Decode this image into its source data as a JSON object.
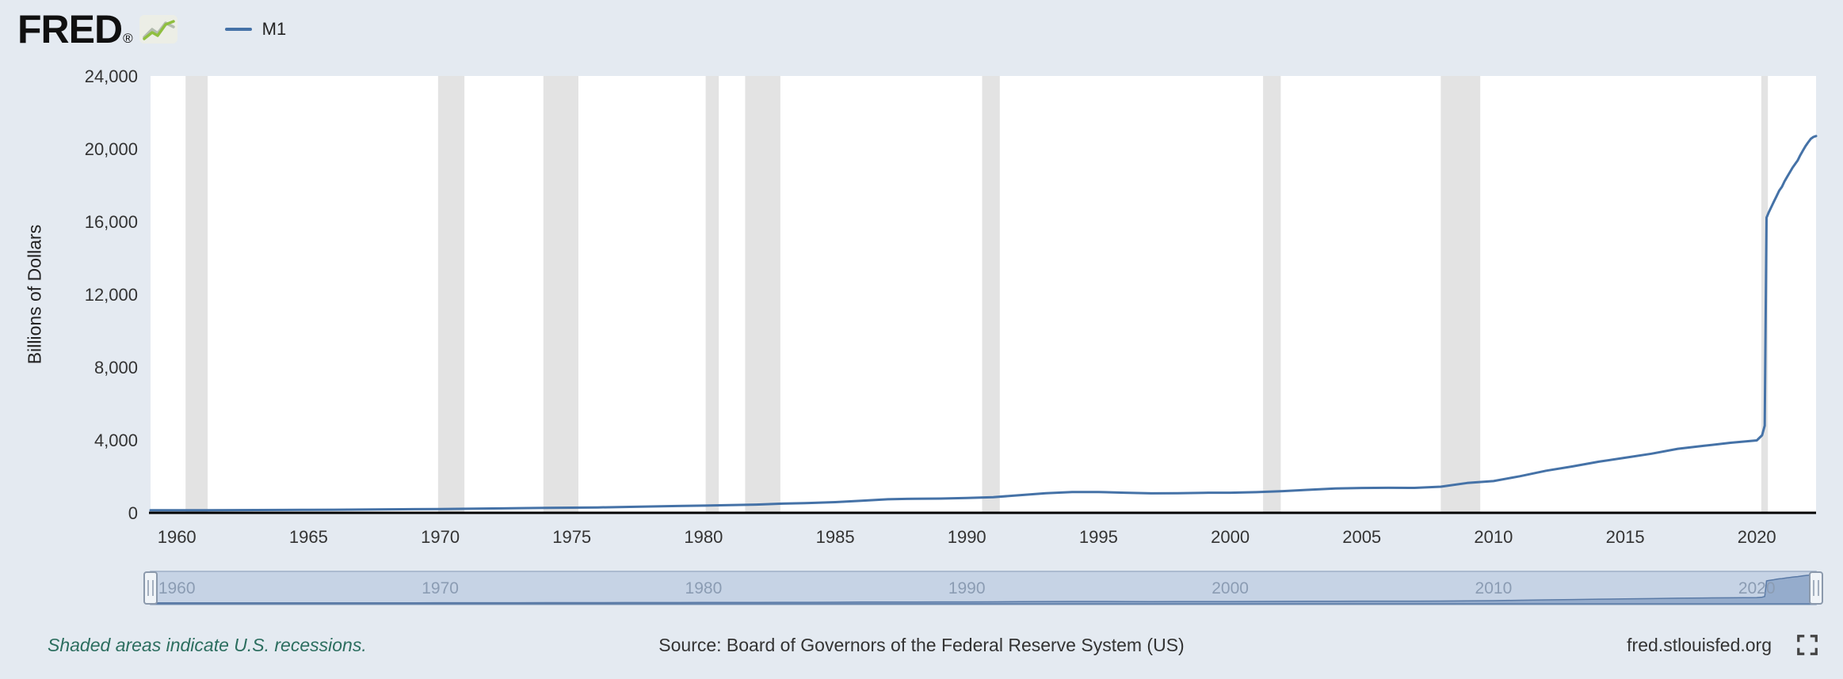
{
  "header": {
    "logo_text": "FRED",
    "logo_registered": "®",
    "legend": {
      "series_label": "M1"
    }
  },
  "chart": {
    "y_axis_label": "Billions of Dollars",
    "y_ticks": [
      {
        "value": 0,
        "label": "0"
      },
      {
        "value": 4000,
        "label": "4,000"
      },
      {
        "value": 8000,
        "label": "8,000"
      },
      {
        "value": 12000,
        "label": "12,000"
      },
      {
        "value": 16000,
        "label": "16,000"
      },
      {
        "value": 20000,
        "label": "20,000"
      },
      {
        "value": 24000,
        "label": "24,000"
      }
    ],
    "x_ticks": [
      {
        "value": 1960,
        "label": "1960"
      },
      {
        "value": 1965,
        "label": "1965"
      },
      {
        "value": 1970,
        "label": "1970"
      },
      {
        "value": 1975,
        "label": "1975"
      },
      {
        "value": 1980,
        "label": "1980"
      },
      {
        "value": 1985,
        "label": "1985"
      },
      {
        "value": 1990,
        "label": "1990"
      },
      {
        "value": 1995,
        "label": "1995"
      },
      {
        "value": 2000,
        "label": "2000"
      },
      {
        "value": 2005,
        "label": "2005"
      },
      {
        "value": 2010,
        "label": "2010"
      },
      {
        "value": 2015,
        "label": "2015"
      },
      {
        "value": 2020,
        "label": "2020"
      }
    ],
    "colors": {
      "line": "#4572a7",
      "recession": "#e3e3e3",
      "plot_background": "#ffffff",
      "page_background": "#e4eaf1",
      "navigator_track": "#c6d3e5",
      "navigator_series": "#8ca5c8"
    }
  },
  "navigator": {
    "labels": [
      {
        "value": 1960,
        "label": "1960"
      },
      {
        "value": 1970,
        "label": "1970"
      },
      {
        "value": 1980,
        "label": "1980"
      },
      {
        "value": 1990,
        "label": "1990"
      },
      {
        "value": 2000,
        "label": "2000"
      },
      {
        "value": 2010,
        "label": "2010"
      },
      {
        "value": 2020,
        "label": "2020"
      }
    ]
  },
  "footer": {
    "recession_note": "Shaded areas indicate U.S. recessions.",
    "source": "Source: Board of Governors of the Federal Reserve System (US)",
    "site": "fred.stlouisfed.org"
  },
  "chart_data": {
    "type": "line",
    "title": "M1",
    "xlabel": "",
    "ylabel": "Billions of Dollars",
    "xlim": [
      1959,
      2022.25
    ],
    "ylim": [
      0,
      24000
    ],
    "grid": false,
    "legend_position": "top-left",
    "series": [
      {
        "name": "M1",
        "points": [
          [
            1959,
            139
          ],
          [
            1960,
            140
          ],
          [
            1961,
            143
          ],
          [
            1962,
            146
          ],
          [
            1963,
            151
          ],
          [
            1964,
            157
          ],
          [
            1965,
            164
          ],
          [
            1966,
            171
          ],
          [
            1967,
            178
          ],
          [
            1968,
            190
          ],
          [
            1969,
            201
          ],
          [
            1970,
            209
          ],
          [
            1971,
            223
          ],
          [
            1972,
            239
          ],
          [
            1973,
            256
          ],
          [
            1974,
            269
          ],
          [
            1975,
            281
          ],
          [
            1976,
            297
          ],
          [
            1977,
            320
          ],
          [
            1978,
            346
          ],
          [
            1979,
            372
          ],
          [
            1980,
            396
          ],
          [
            1981,
            425
          ],
          [
            1982,
            453
          ],
          [
            1983,
            503
          ],
          [
            1984,
            538
          ],
          [
            1985,
            587
          ],
          [
            1986,
            666
          ],
          [
            1987,
            744
          ],
          [
            1988,
            775
          ],
          [
            1989,
            782
          ],
          [
            1990,
            811
          ],
          [
            1991,
            859
          ],
          [
            1992,
            965
          ],
          [
            1993,
            1078
          ],
          [
            1994,
            1145
          ],
          [
            1995,
            1143
          ],
          [
            1996,
            1106
          ],
          [
            1997,
            1070
          ],
          [
            1998,
            1080
          ],
          [
            1999,
            1102
          ],
          [
            2000,
            1104
          ],
          [
            2001,
            1136
          ],
          [
            2002,
            1192
          ],
          [
            2003,
            1267
          ],
          [
            2004,
            1335
          ],
          [
            2005,
            1366
          ],
          [
            2006,
            1374
          ],
          [
            2007,
            1369
          ],
          [
            2008,
            1435
          ],
          [
            2009,
            1638
          ],
          [
            2010,
            1742
          ],
          [
            2011,
            2009
          ],
          [
            2012,
            2311
          ],
          [
            2013,
            2546
          ],
          [
            2014,
            2810
          ],
          [
            2015,
            3027
          ],
          [
            2016,
            3250
          ],
          [
            2017,
            3519
          ],
          [
            2018,
            3682
          ],
          [
            2019,
            3846
          ],
          [
            2020,
            3978
          ],
          [
            2020.2,
            4261
          ],
          [
            2020.3,
            4790
          ],
          [
            2020.37,
            16219
          ],
          [
            2020.45,
            16500
          ],
          [
            2020.55,
            16800
          ],
          [
            2020.65,
            17100
          ],
          [
            2020.75,
            17400
          ],
          [
            2020.85,
            17700
          ],
          [
            2020.95,
            17900
          ],
          [
            2021.05,
            18200
          ],
          [
            2021.15,
            18450
          ],
          [
            2021.25,
            18700
          ],
          [
            2021.35,
            18950
          ],
          [
            2021.45,
            19150
          ],
          [
            2021.55,
            19350
          ],
          [
            2021.65,
            19650
          ],
          [
            2021.75,
            19900
          ],
          [
            2021.85,
            20150
          ],
          [
            2021.95,
            20350
          ],
          [
            2022.05,
            20550
          ],
          [
            2022.15,
            20650
          ],
          [
            2022.25,
            20700
          ]
        ]
      }
    ],
    "recessions": [
      [
        1960.33,
        1961.17
      ],
      [
        1969.92,
        1970.92
      ],
      [
        1973.92,
        1975.25
      ],
      [
        1980.08,
        1980.58
      ],
      [
        1981.58,
        1982.92
      ],
      [
        1990.58,
        1991.25
      ],
      [
        2001.25,
        2001.92
      ],
      [
        2008.0,
        2009.5
      ],
      [
        2020.17,
        2020.42
      ]
    ]
  }
}
